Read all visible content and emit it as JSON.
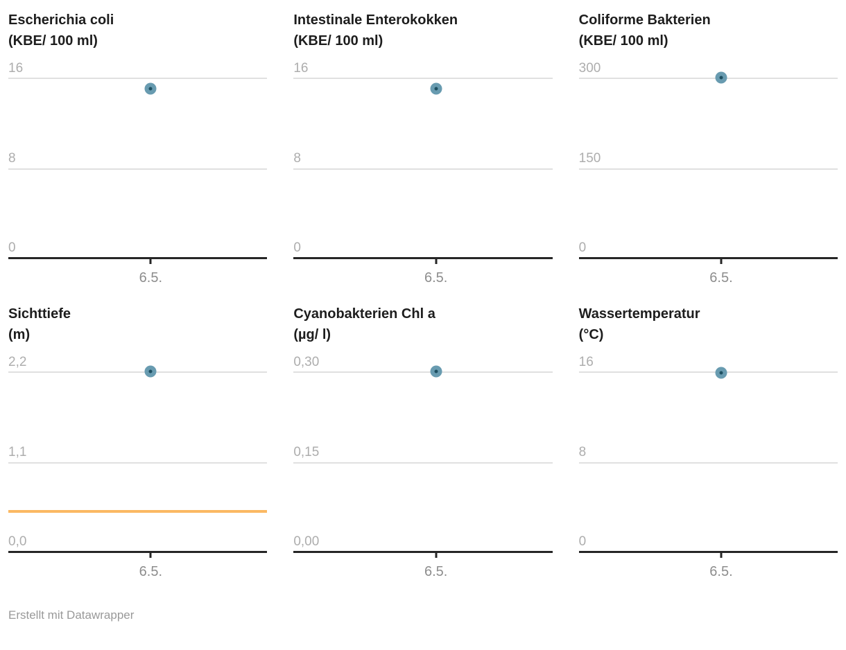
{
  "credit": "Erstellt mit Datawrapper",
  "colors": {
    "title": "#1d1d1d",
    "y_tick_label": "#adadad",
    "x_tick_label": "#8d8d8d",
    "gridline": "#e0e0e0",
    "axis": "#262626",
    "point_fill": "#689bb0",
    "point_core": "#1e5062",
    "reference_line": "#fbb963",
    "credit": "#999999",
    "background": "#ffffff"
  },
  "chart_data": [
    {
      "type": "scatter",
      "title": "Escherichia coli",
      "unit": "(KBE/ 100 ml)",
      "x": [
        "6.5."
      ],
      "values": [
        15
      ],
      "ylim": [
        0,
        16
      ],
      "yticks": [
        {
          "value": 0,
          "label": "0"
        },
        {
          "value": 8,
          "label": "8"
        },
        {
          "value": 16,
          "label": "16"
        }
      ],
      "reference_line": null
    },
    {
      "type": "scatter",
      "title": "Intestinale Enterokokken",
      "unit": "(KBE/ 100 ml)",
      "x": [
        "6.5."
      ],
      "values": [
        15
      ],
      "ylim": [
        0,
        16
      ],
      "yticks": [
        {
          "value": 0,
          "label": "0"
        },
        {
          "value": 8,
          "label": "8"
        },
        {
          "value": 16,
          "label": "16"
        }
      ],
      "reference_line": null
    },
    {
      "type": "scatter",
      "title": "Coliforme Bakterien",
      "unit": "(KBE/ 100 ml)",
      "x": [
        "6.5."
      ],
      "values": [
        300
      ],
      "ylim": [
        0,
        300
      ],
      "yticks": [
        {
          "value": 0,
          "label": "0"
        },
        {
          "value": 150,
          "label": "150"
        },
        {
          "value": 300,
          "label": "300"
        }
      ],
      "reference_line": null
    },
    {
      "type": "scatter",
      "title": "Sichttiefe",
      "unit": "(m)",
      "x": [
        "6.5."
      ],
      "values": [
        2.2
      ],
      "ylim": [
        0,
        2.2
      ],
      "yticks": [
        {
          "value": 0,
          "label": "0,0"
        },
        {
          "value": 1.1,
          "label": "1,1"
        },
        {
          "value": 2.2,
          "label": "2,2"
        }
      ],
      "reference_line": {
        "value": 0.5
      }
    },
    {
      "type": "scatter",
      "title": "Cyanobakterien Chl a",
      "unit": "(µg/ l)",
      "x": [
        "6.5."
      ],
      "values": [
        0.3
      ],
      "ylim": [
        0,
        0.3
      ],
      "yticks": [
        {
          "value": 0,
          "label": "0,00"
        },
        {
          "value": 0.15,
          "label": "0,15"
        },
        {
          "value": 0.3,
          "label": "0,30"
        }
      ],
      "reference_line": null
    },
    {
      "type": "scatter",
      "title": "Wassertemperatur",
      "unit": "(°C)",
      "x": [
        "6.5."
      ],
      "values": [
        15.9
      ],
      "ylim": [
        0,
        16
      ],
      "yticks": [
        {
          "value": 0,
          "label": "0"
        },
        {
          "value": 8,
          "label": "8"
        },
        {
          "value": 16,
          "label": "16"
        }
      ],
      "reference_line": null
    }
  ]
}
